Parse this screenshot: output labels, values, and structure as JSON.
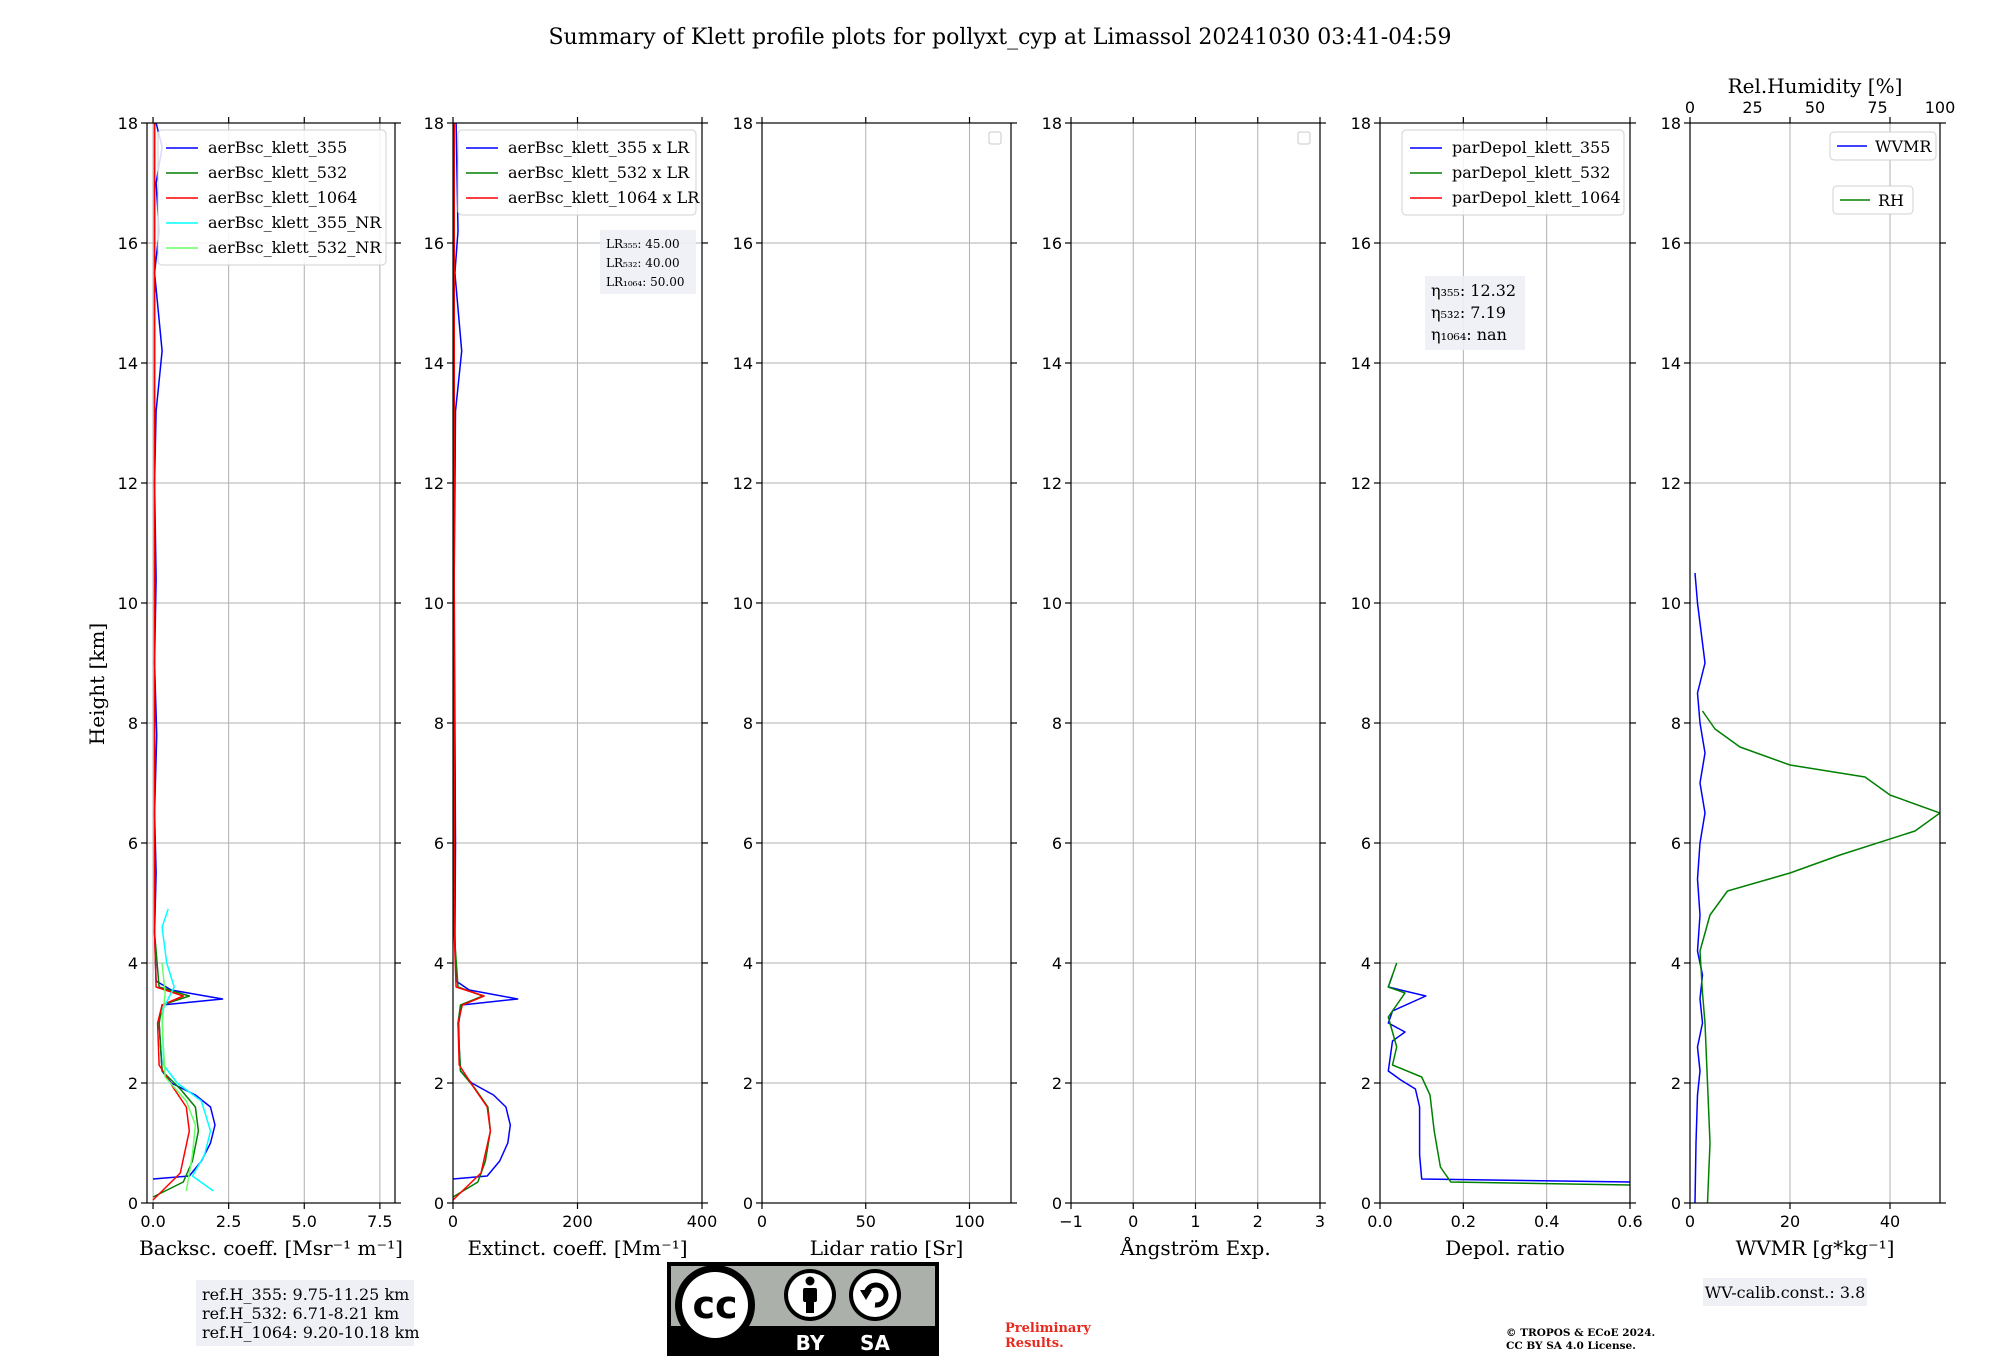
{
  "figure": {
    "title": "Summary of Klett profile plots for pollyxt_cyp at Limassol 20241030 03:41-04:59",
    "ylabel": "Height [km]",
    "y_ticks": [
      "0",
      "2",
      "4",
      "6",
      "8",
      "10",
      "12",
      "14",
      "16",
      "18"
    ],
    "ref_heights": [
      "ref.H_355: 9.75-11.25 km",
      "ref.H_532: 6.71-8.21 km",
      "ref.H_1064: 9.20-10.18 km"
    ],
    "preliminary_lines": [
      "Preliminary",
      "Results."
    ],
    "copyright_lines": [
      "© TROPOS & ECoE 2024.",
      "CC BY SA 4.0 License."
    ],
    "wv_calib": "WV-calib.const.: 3.8",
    "license_logo": {
      "cc": "cc",
      "by": "BY",
      "sa": "SA"
    }
  },
  "colors": {
    "c355": "#0000ff",
    "c532": "#008000",
    "c1064": "#ff0000",
    "c355nr": "#00ffff",
    "c532nr": "#66ff66"
  },
  "chart_data": [
    {
      "type": "line",
      "id": "backscatter",
      "xlabel": "Backsc. coeff. [Msr⁻¹ m⁻¹]",
      "ylabel": "Height [km]",
      "xlim": [
        -0.2,
        8.0
      ],
      "ylim": [
        0,
        18
      ],
      "x_ticks": [
        0,
        2.5,
        5.0,
        7.5
      ],
      "x_tick_labels": [
        "0.0",
        "2.5",
        "5.0",
        "7.5"
      ],
      "grid": true,
      "legend": [
        "aerBsc_klett_355",
        "aerBsc_klett_532",
        "aerBsc_klett_1064",
        "aerBsc_klett_355_NR",
        "aerBsc_klett_532_NR"
      ],
      "series": [
        {
          "name": "aerBsc_klett_355",
          "color": "c355",
          "points": [
            [
              0.0,
              0.4
            ],
            [
              1.2,
              0.45
            ],
            [
              1.6,
              0.7
            ],
            [
              1.9,
              1.0
            ],
            [
              2.05,
              1.3
            ],
            [
              1.9,
              1.6
            ],
            [
              1.4,
              1.8
            ],
            [
              0.6,
              2.0
            ],
            [
              0.3,
              2.2
            ],
            [
              0.25,
              2.6
            ],
            [
              0.2,
              3.0
            ],
            [
              0.3,
              3.3
            ],
            [
              2.3,
              3.4
            ],
            [
              0.6,
              3.55
            ],
            [
              0.1,
              3.7
            ],
            [
              0.05,
              4.5
            ],
            [
              0.1,
              5.5
            ],
            [
              0.05,
              6.5
            ],
            [
              0.12,
              7.8
            ],
            [
              0.05,
              9.0
            ],
            [
              0.1,
              10.4
            ],
            [
              0.05,
              12.0
            ],
            [
              0.1,
              13.2
            ],
            [
              0.3,
              14.2
            ],
            [
              0.05,
              15.5
            ],
            [
              0.2,
              16.2
            ],
            [
              0.1,
              17.0
            ],
            [
              0.3,
              17.6
            ],
            [
              0.1,
              18.0
            ]
          ]
        },
        {
          "name": "aerBsc_klett_532",
          "color": "c532",
          "points": [
            [
              0.0,
              0.1
            ],
            [
              1.0,
              0.35
            ],
            [
              1.3,
              0.7
            ],
            [
              1.5,
              1.2
            ],
            [
              1.4,
              1.6
            ],
            [
              0.9,
              1.9
            ],
            [
              0.3,
              2.2
            ],
            [
              0.2,
              3.0
            ],
            [
              0.3,
              3.3
            ],
            [
              1.2,
              3.45
            ],
            [
              0.2,
              3.6
            ],
            [
              0.05,
              4.5
            ],
            [
              0.05,
              8.0
            ],
            [
              0.05,
              12.0
            ],
            [
              0.05,
              18.0
            ]
          ]
        },
        {
          "name": "aerBsc_klett_1064",
          "color": "c1064",
          "points": [
            [
              0.0,
              0.05
            ],
            [
              0.9,
              0.5
            ],
            [
              1.2,
              1.2
            ],
            [
              1.1,
              1.6
            ],
            [
              0.7,
              1.9
            ],
            [
              0.2,
              2.3
            ],
            [
              0.15,
              3.0
            ],
            [
              0.3,
              3.3
            ],
            [
              1.0,
              3.45
            ],
            [
              0.1,
              3.6
            ],
            [
              0.05,
              4.5
            ],
            [
              0.05,
              18.0
            ]
          ]
        },
        {
          "name": "aerBsc_klett_355_NR",
          "color": "c355nr",
          "points": [
            [
              2.0,
              0.2
            ],
            [
              1.3,
              0.45
            ],
            [
              1.7,
              0.8
            ],
            [
              1.9,
              1.2
            ],
            [
              1.6,
              1.7
            ],
            [
              0.8,
              2.0
            ],
            [
              0.35,
              2.3
            ],
            [
              0.3,
              3.2
            ],
            [
              0.7,
              3.6
            ],
            [
              0.45,
              4.0
            ],
            [
              0.3,
              4.6
            ],
            [
              0.5,
              4.9
            ]
          ]
        },
        {
          "name": "aerBsc_klett_532_NR",
          "color": "c532nr",
          "points": [
            [
              1.1,
              0.2
            ],
            [
              1.3,
              0.8
            ],
            [
              1.4,
              1.3
            ],
            [
              1.1,
              1.7
            ],
            [
              0.4,
              2.1
            ],
            [
              0.3,
              3.0
            ],
            [
              0.4,
              3.5
            ],
            [
              0.3,
              4.0
            ]
          ]
        }
      ]
    },
    {
      "type": "line",
      "id": "extinction",
      "xlabel": "Extinct. coeff. [Mm⁻¹]",
      "xlim": [
        0,
        400
      ],
      "ylim": [
        0,
        18
      ],
      "x_ticks": [
        0,
        200,
        400
      ],
      "x_tick_labels": [
        "0",
        "200",
        "400"
      ],
      "grid": true,
      "legend": [
        "aerBsc_klett_355 x LR",
        "aerBsc_klett_532 x LR",
        "aerBsc_klett_1064 x LR"
      ],
      "annotation": [
        "LR₃₅₅: 45.00",
        "LR₅₃₂: 40.00",
        "LR₁₀₆₄: 50.00"
      ],
      "series": [
        {
          "name": "aerBsc_klett_355 x LR",
          "color": "c355",
          "points": [
            [
              0,
              0.4
            ],
            [
              55,
              0.45
            ],
            [
              75,
              0.7
            ],
            [
              88,
              1.0
            ],
            [
              92,
              1.3
            ],
            [
              85,
              1.6
            ],
            [
              65,
              1.8
            ],
            [
              30,
              2.0
            ],
            [
              12,
              2.2
            ],
            [
              10,
              2.6
            ],
            [
              9,
              3.0
            ],
            [
              14,
              3.3
            ],
            [
              104,
              3.4
            ],
            [
              26,
              3.55
            ],
            [
              5,
              3.7
            ],
            [
              3,
              4.5
            ],
            [
              4,
              6.0
            ],
            [
              3,
              7.8
            ],
            [
              2,
              10.4
            ],
            [
              4,
              13.2
            ],
            [
              14,
              14.2
            ],
            [
              3,
              15.5
            ],
            [
              8,
              16.2
            ],
            [
              5,
              18.0
            ]
          ]
        },
        {
          "name": "aerBsc_klett_532 x LR",
          "color": "c532",
          "points": [
            [
              0,
              0.1
            ],
            [
              40,
              0.35
            ],
            [
              52,
              0.7
            ],
            [
              60,
              1.2
            ],
            [
              56,
              1.6
            ],
            [
              36,
              1.9
            ],
            [
              12,
              2.2
            ],
            [
              8,
              3.0
            ],
            [
              12,
              3.3
            ],
            [
              48,
              3.45
            ],
            [
              8,
              3.6
            ],
            [
              2,
              4.5
            ],
            [
              2,
              18.0
            ]
          ]
        },
        {
          "name": "aerBsc_klett_1064 x LR",
          "color": "c1064",
          "points": [
            [
              0,
              0.05
            ],
            [
              45,
              0.5
            ],
            [
              60,
              1.2
            ],
            [
              55,
              1.6
            ],
            [
              35,
              1.9
            ],
            [
              10,
              2.3
            ],
            [
              8,
              3.0
            ],
            [
              15,
              3.3
            ],
            [
              50,
              3.45
            ],
            [
              5,
              3.6
            ],
            [
              2,
              4.5
            ],
            [
              2,
              18.0
            ]
          ]
        }
      ]
    },
    {
      "type": "line",
      "id": "lidar_ratio",
      "xlabel": "Lidar ratio [Sr]",
      "xlim": [
        0,
        120
      ],
      "ylim": [
        0,
        18
      ],
      "x_ticks": [
        0,
        50,
        100
      ],
      "x_tick_labels": [
        "0",
        "50",
        "100"
      ],
      "grid": true,
      "series": []
    },
    {
      "type": "line",
      "id": "angstrom",
      "xlabel": "Ångström Exp.",
      "xlim": [
        -1,
        3
      ],
      "ylim": [
        0,
        18
      ],
      "x_ticks": [
        -1,
        0,
        1,
        2,
        3
      ],
      "x_tick_labels": [
        "−1",
        "0",
        "1",
        "2",
        "3"
      ],
      "grid": true,
      "series": []
    },
    {
      "type": "line",
      "id": "depol",
      "xlabel": "Depol. ratio",
      "xlim": [
        0,
        0.6
      ],
      "ylim": [
        0,
        18
      ],
      "x_ticks": [
        0,
        0.2,
        0.4,
        0.6
      ],
      "x_tick_labels": [
        "0.0",
        "0.2",
        "0.4",
        "0.6"
      ],
      "grid": true,
      "legend": [
        "parDepol_klett_355",
        "parDepol_klett_532",
        "parDepol_klett_1064"
      ],
      "annotation": [
        "η₃₅₅: 12.32",
        "η₅₃₂: 7.19",
        "η₁₀₆₄: nan"
      ],
      "series": [
        {
          "name": "parDepol_klett_355",
          "color": "c355",
          "points": [
            [
              0.6,
              0.35
            ],
            [
              0.1,
              0.4
            ],
            [
              0.095,
              0.8
            ],
            [
              0.095,
              1.6
            ],
            [
              0.085,
              1.9
            ],
            [
              0.05,
              2.05
            ],
            [
              0.02,
              2.2
            ],
            [
              0.03,
              2.7
            ],
            [
              0.06,
              2.85
            ],
            [
              0.02,
              3.0
            ],
            [
              0.03,
              3.2
            ],
            [
              0.11,
              3.45
            ],
            [
              0.02,
              3.6
            ],
            [
              0.03,
              3.8
            ]
          ]
        },
        {
          "name": "parDepol_klett_532",
          "color": "c532",
          "points": [
            [
              0.6,
              0.3
            ],
            [
              0.17,
              0.35
            ],
            [
              0.145,
              0.6
            ],
            [
              0.13,
              1.2
            ],
            [
              0.12,
              1.8
            ],
            [
              0.1,
              2.1
            ],
            [
              0.03,
              2.3
            ],
            [
              0.04,
              2.6
            ],
            [
              0.02,
              3.1
            ],
            [
              0.06,
              3.5
            ],
            [
              0.02,
              3.6
            ],
            [
              0.04,
              4.0
            ]
          ]
        },
        {
          "name": "parDepol_klett_1064",
          "color": "c1064",
          "points": []
        }
      ]
    },
    {
      "type": "line",
      "id": "wvmr",
      "xlabel": "WVMR [g*kg⁻¹]",
      "xlim": [
        0,
        50
      ],
      "ylim": [
        0,
        18
      ],
      "x_ticks": [
        0,
        20,
        40
      ],
      "x_tick_labels": [
        "0",
        "20",
        "40"
      ],
      "top_axis_label": "Rel.Humidity [%]",
      "top_xlim": [
        0,
        100
      ],
      "top_ticks": [
        0,
        25,
        50,
        75,
        100
      ],
      "top_tick_labels": [
        "0",
        "25",
        "50",
        "75",
        "100"
      ],
      "grid": true,
      "legend": [
        "WVMR",
        "RH"
      ],
      "series": [
        {
          "name": "WVMR",
          "color": "c355",
          "points": [
            [
              1.0,
              0.0
            ],
            [
              1.2,
              1.0
            ],
            [
              1.5,
              1.8
            ],
            [
              2.0,
              2.2
            ],
            [
              1.5,
              2.6
            ],
            [
              2.5,
              3.0
            ],
            [
              2.0,
              3.4
            ],
            [
              2.5,
              3.8
            ],
            [
              1.5,
              4.2
            ],
            [
              2.0,
              4.8
            ],
            [
              1.5,
              5.4
            ],
            [
              2.0,
              6.0
            ],
            [
              3.0,
              6.5
            ],
            [
              2.0,
              7.0
            ],
            [
              3.0,
              7.5
            ],
            [
              2.0,
              8.0
            ],
            [
              1.5,
              8.5
            ],
            [
              3.0,
              9.0
            ],
            [
              1.5,
              10.0
            ],
            [
              1.0,
              10.5
            ]
          ]
        },
        {
          "name": "RH",
          "color": "c532",
          "points": [
            [
              7,
              0.0
            ],
            [
              8,
              1.0
            ],
            [
              7,
              2.0
            ],
            [
              6,
              3.0
            ],
            [
              5,
              3.5
            ],
            [
              4,
              4.2
            ],
            [
              8,
              4.8
            ],
            [
              15,
              5.2
            ],
            [
              40,
              5.5
            ],
            [
              60,
              5.8
            ],
            [
              90,
              6.2
            ],
            [
              100,
              6.5
            ],
            [
              80,
              6.8
            ],
            [
              70,
              7.1
            ],
            [
              40,
              7.3
            ],
            [
              20,
              7.6
            ],
            [
              10,
              7.9
            ],
            [
              5,
              8.2
            ]
          ]
        }
      ]
    }
  ]
}
